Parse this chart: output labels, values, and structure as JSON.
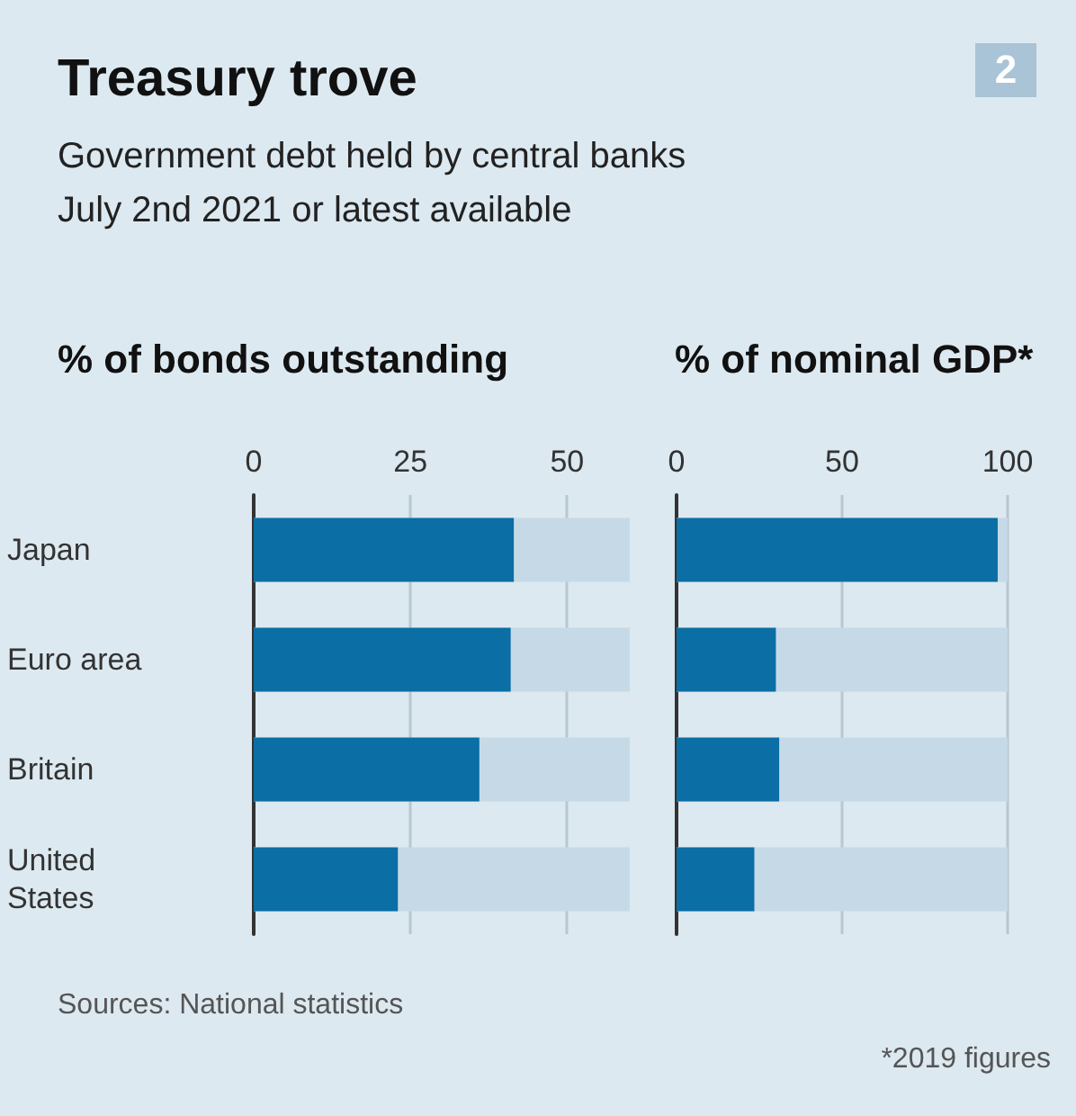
{
  "chart_data": [
    {
      "type": "bar",
      "orientation": "horizontal",
      "title": "Treasury trove",
      "subtitle": "Government debt held by central banks\nJuly 2nd 2021 or latest available",
      "xlabel": "% of bonds outstanding",
      "categories": [
        "Japan",
        "Euro area",
        "Britain",
        "United\nStates"
      ],
      "values": [
        41.5,
        41,
        36,
        23
      ],
      "color": "#0b6ea5",
      "xlim": [
        0,
        60
      ],
      "xticks": [
        0,
        25,
        50
      ],
      "grid": "x",
      "annotations": [
        "2",
        "Sources: National statistics"
      ]
    },
    {
      "type": "bar",
      "orientation": "horizontal",
      "xlabel": "% of nominal GDP*",
      "categories": [
        null,
        null,
        null,
        null
      ],
      "values": [
        97,
        30,
        31,
        23.5
      ],
      "color": "#0b6ea5",
      "xlim": [
        0,
        100
      ],
      "xticks": [
        0,
        50,
        100
      ],
      "grid": "x",
      "tick_labels": "x",
      "annotations": [
        "*2019 figures"
      ]
    }
  ]
}
